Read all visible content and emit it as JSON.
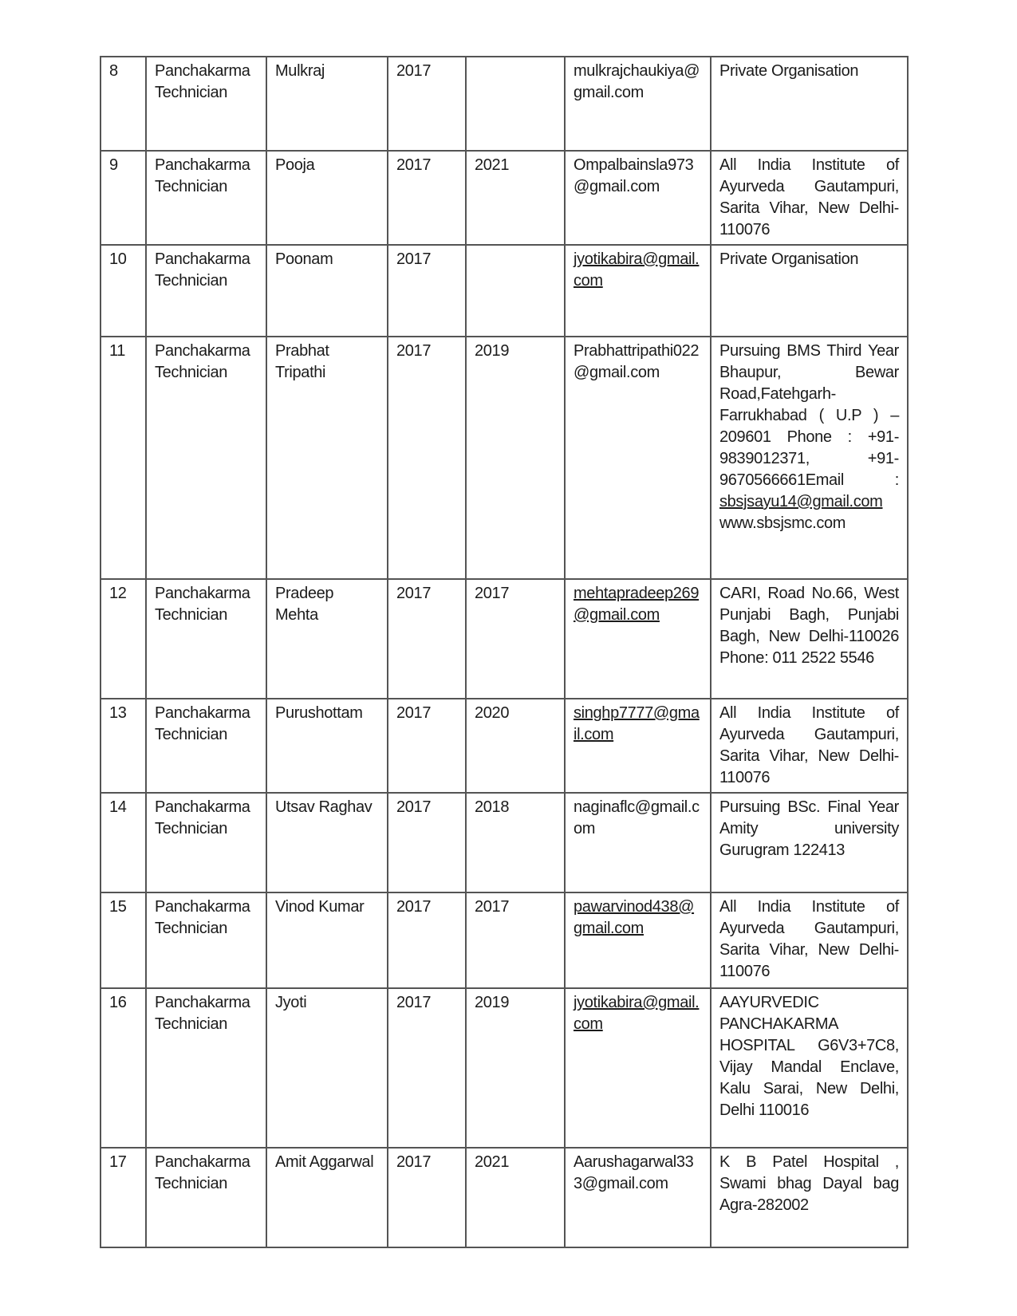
{
  "document": {
    "table": {
      "rows": [
        {
          "sno": "8",
          "designation": "Panchakarma Technician",
          "name": "Mulkraj",
          "year_joined": "2017",
          "year_left": "",
          "email": "mulkrajchaukiya@gmail.com",
          "email_is_link": false,
          "organisation": [
            {
              "text": "Private Organisation",
              "link": false
            }
          ]
        },
        {
          "sno": "9",
          "designation": "Panchakarma Technician",
          "name": "Pooja",
          "year_joined": "2017",
          "year_left": "2021",
          "email": "Ompalbainsla973@gmail.com",
          "email_is_link": false,
          "organisation": [
            {
              "text": "All India Institute of Ayurveda Gautampuri, Sarita Vihar, New Delhi-110076",
              "link": false
            }
          ]
        },
        {
          "sno": "10",
          "designation": "Panchakarma Technician",
          "name": "Poonam",
          "year_joined": "2017",
          "year_left": "",
          "email": "jyotikabira@gmail.com",
          "email_is_link": true,
          "organisation": [
            {
              "text": "Private Organisation",
              "link": false
            }
          ]
        },
        {
          "sno": "11",
          "designation": "Panchakarma Technician",
          "name": "Prabhat Tripathi",
          "year_joined": "2017",
          "year_left": "2019",
          "email": "Prabhattripathi022@gmail.com",
          "email_is_link": false,
          "organisation": [
            {
              "text": "Pursuing BMS Third Year Bhaupur, Bewar Road,Fatehgarh-Farrukhabad ( U.P ) – 209601 Phone : +91-9839012371, +91-9670566661Email : ",
              "link": false
            },
            {
              "text": "sbsjsayu14@gmail.com",
              "link": true
            },
            {
              "text": " www.sbsjsmc.com",
              "link": false
            }
          ]
        },
        {
          "sno": "12",
          "designation": "Panchakarma Technician",
          "name": "Pradeep Mehta",
          "year_joined": "2017",
          "year_left": "2017",
          "email": "mehtapradeep269@gmail.com",
          "email_is_link": true,
          "organisation": [
            {
              "text": "CARI, Road No.66, West Punjabi Bagh, Punjabi Bagh, New Delhi-110026 Phone: 011 2522 5546",
              "link": false
            }
          ]
        },
        {
          "sno": "13",
          "designation": "Panchakarma Technician",
          "name": "Purushottam",
          "year_joined": "2017",
          "year_left": "2020",
          "email": "singhp7777@gmail.com",
          "email_is_link": true,
          "organisation": [
            {
              "text": "All India Institute of Ayurveda Gautampuri, Sarita Vihar, New Delhi-110076",
              "link": false
            }
          ]
        },
        {
          "sno": "14",
          "designation": "Panchakarma Technician",
          "name": "Utsav Raghav",
          "year_joined": "2017",
          "year_left": "2018",
          "email": "naginaflc@gmail.com",
          "email_is_link": false,
          "organisation": [
            {
              "text": "Pursuing BSc. Final Year Amity university Gurugram 122413",
              "link": false
            }
          ]
        },
        {
          "sno": "15",
          "designation": "Panchakarma Technician",
          "name": "Vinod Kumar",
          "year_joined": "2017",
          "year_left": "2017",
          "email": "pawarvinod438@gmail.com",
          "email_is_link": true,
          "organisation": [
            {
              "text": "All India Institute of Ayurveda Gautampuri, Sarita Vihar, New Delhi-110076",
              "link": false
            }
          ]
        },
        {
          "sno": "16",
          "designation": "Panchakarma Technician",
          "name": "Jyoti",
          "year_joined": "2017",
          "year_left": "2019",
          "email": "jyotikabira@gmail.com",
          "email_is_link": true,
          "organisation": [
            {
              "text": "AAYURVEDIC PANCHAKARMA HOSPITAL G6V3+7C8, Vijay Mandal Enclave, Kalu Sarai, New Delhi, Delhi 110016",
              "link": false
            }
          ]
        },
        {
          "sno": "17",
          "designation": "Panchakarma Technician",
          "name": "Amit Aggarwal",
          "year_joined": "2017",
          "year_left": "2021",
          "email": "Aarushagarwal333@gmail.com",
          "email_is_link": false,
          "organisation": [
            {
              "text": "K B Patel Hospital , Swami bhag Dayal bag Agra-282002",
              "link": false
            }
          ]
        }
      ]
    }
  }
}
